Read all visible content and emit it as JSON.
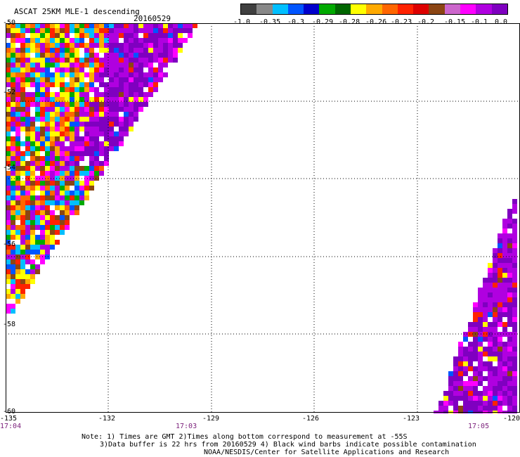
{
  "header": {
    "title": "ASCAT 25KM MLE-1 descending",
    "date": "20160529"
  },
  "colorbar": {
    "colors": [
      "#3f3f3f",
      "#888888",
      "#00bfff",
      "#0055ff",
      "#0000cc",
      "#00aa00",
      "#006600",
      "#ffff00",
      "#ffaa00",
      "#ff6600",
      "#ff2200",
      "#dd0000",
      "#8b4513",
      "#cc66cc",
      "#ff00ff",
      "#b000e0",
      "#7f00c0"
    ],
    "labels": [
      "-1.0",
      "-0.35",
      "-0.3",
      "-0.29",
      "-0.28",
      "-0.26",
      "-0.23",
      "-0.2",
      "-0.15",
      "-0.1",
      "0.0"
    ]
  },
  "map": {
    "lon_range": [
      -135,
      -120
    ],
    "lat_range": [
      -50,
      -60
    ],
    "x_ticks": [
      "-135",
      "-132",
      "-129",
      "-126",
      "-123",
      "-120"
    ],
    "y_ticks": [
      "-50",
      "-52",
      "-54",
      "-56",
      "-58",
      "-60"
    ],
    "times": [
      "17:04",
      "17:03",
      "17:05"
    ]
  },
  "notes": {
    "line1": "Note: 1) Times are GMT 2)Times along bottom correspond to measurement at -55S",
    "line2": "3)Data buffer is 22 hrs from 20160529 4) Black wind barbs indicate possible contamination",
    "line3": "NOAA/NESDIS/Center for Satellite Applications and Research"
  }
}
